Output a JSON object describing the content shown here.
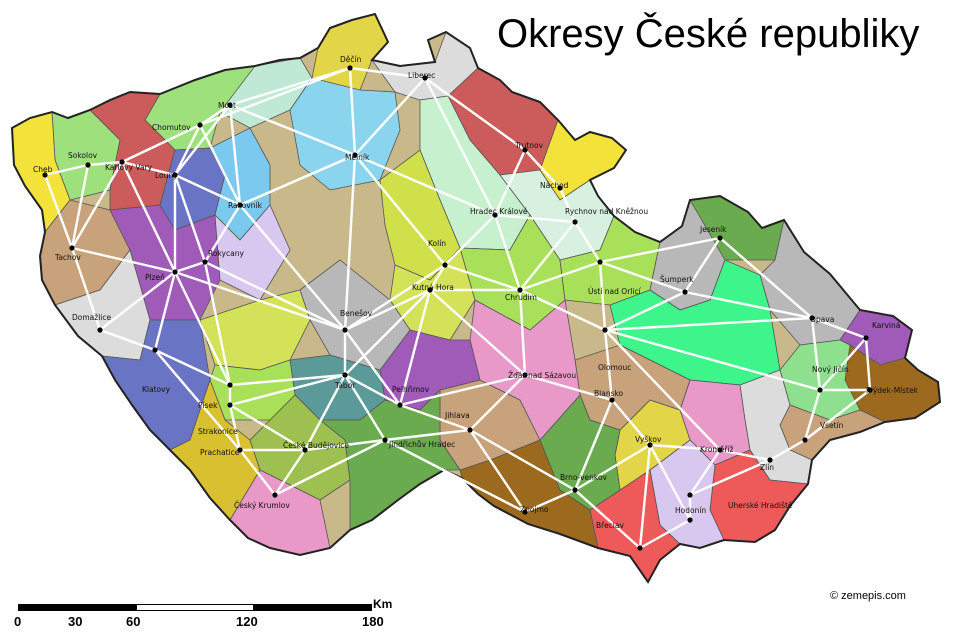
{
  "title": "Okresy České republiky",
  "credit": "© zemepis.com",
  "scale": {
    "unit": "Km",
    "labels": [
      "0",
      "30",
      "60",
      "120",
      "180"
    ]
  },
  "districts": [
    {
      "name": "Děčín",
      "color": "#e3d548"
    },
    {
      "name": "Liberec",
      "color": "#dcdcdc"
    },
    {
      "name": "Most",
      "color": "#bfe9d4"
    },
    {
      "name": "Chomutov",
      "color": "#9ee07c"
    },
    {
      "name": "Sokolov",
      "color": "#9ee07c"
    },
    {
      "name": "Cheb",
      "color": "#f2e23a"
    },
    {
      "name": "Karlovy Vary",
      "color": "#cc5c5c"
    },
    {
      "name": "Louny",
      "color": "#6a74c4"
    },
    {
      "name": "Rakovník",
      "color": "#7cc9f0"
    },
    {
      "name": "Mělník",
      "color": "#8ad4ee"
    },
    {
      "name": "Trutnov",
      "color": "#cc5c5c"
    },
    {
      "name": "Náchod",
      "color": "#f2e23a"
    },
    {
      "name": "Hradec Králové",
      "color": "#c7f0cf"
    },
    {
      "name": "Rychnov nad Kněžnou",
      "color": "#d8f0e0"
    },
    {
      "name": "Tachov",
      "color": "#c7a27a"
    },
    {
      "name": "Plzeň",
      "color": "#a05ab8"
    },
    {
      "name": "Domažlice",
      "color": "#dcdcdc"
    },
    {
      "name": "Klatovy",
      "color": "#6a74c4"
    },
    {
      "name": "Rokycany",
      "color": "#d8c8f0"
    },
    {
      "name": "Kolín",
      "color": "#d0e04a"
    },
    {
      "name": "Kutná Hora",
      "color": "#d4e25a"
    },
    {
      "name": "Chrudim",
      "color": "#a8e05a"
    },
    {
      "name": "Ústí nad Orlicí",
      "color": "#a8e05a"
    },
    {
      "name": "Šumperk",
      "color": "#b8b8b8"
    },
    {
      "name": "Jeseník",
      "color": "#6bab4f"
    },
    {
      "name": "Opava",
      "color": "#b8b8b8"
    },
    {
      "name": "Karviná",
      "color": "#a05ab8"
    },
    {
      "name": "Frýdek-Místek",
      "color": "#9c6a1f"
    },
    {
      "name": "Nový Jičín",
      "color": "#8ee08e"
    },
    {
      "name": "Olomouc",
      "color": "#3df58a"
    },
    {
      "name": "Vsetín",
      "color": "#c7a27a"
    },
    {
      "name": "Zlín",
      "color": "#dcdcdc"
    },
    {
      "name": "Kroměříž",
      "color": "#e899c8"
    },
    {
      "name": "Uherské Hradiště",
      "color": "#ee5a5a"
    },
    {
      "name": "Hodonín",
      "color": "#d8c8f0"
    },
    {
      "name": "Břeclav",
      "color": "#ee5a5a"
    },
    {
      "name": "Vyškov",
      "color": "#e3d548"
    },
    {
      "name": "Blansko",
      "color": "#c7a27a"
    },
    {
      "name": "Brno-venkov",
      "color": "#6bab4f"
    },
    {
      "name": "Znojmo",
      "color": "#9c6a1f"
    },
    {
      "name": "Jihlava",
      "color": "#c7a27a"
    },
    {
      "name": "Žďár nad Sázavou",
      "color": "#e899c8"
    },
    {
      "name": "Pelhřimov",
      "color": "#a05ab8"
    },
    {
      "name": "Benešov",
      "color": "#b8b8b8"
    },
    {
      "name": "Tábor",
      "color": "#5c9a9a"
    },
    {
      "name": "Písek",
      "color": "#d4e25a"
    },
    {
      "name": "Strakonice",
      "color": "#a8e05a"
    },
    {
      "name": "Prachatice",
      "color": "#d8c030"
    },
    {
      "name": "České Budějovice",
      "color": "#9ec050"
    },
    {
      "name": "Český Krumlov",
      "color": "#e899c8"
    },
    {
      "name": "Jindřichův Hradec",
      "color": "#6bab4f"
    }
  ]
}
